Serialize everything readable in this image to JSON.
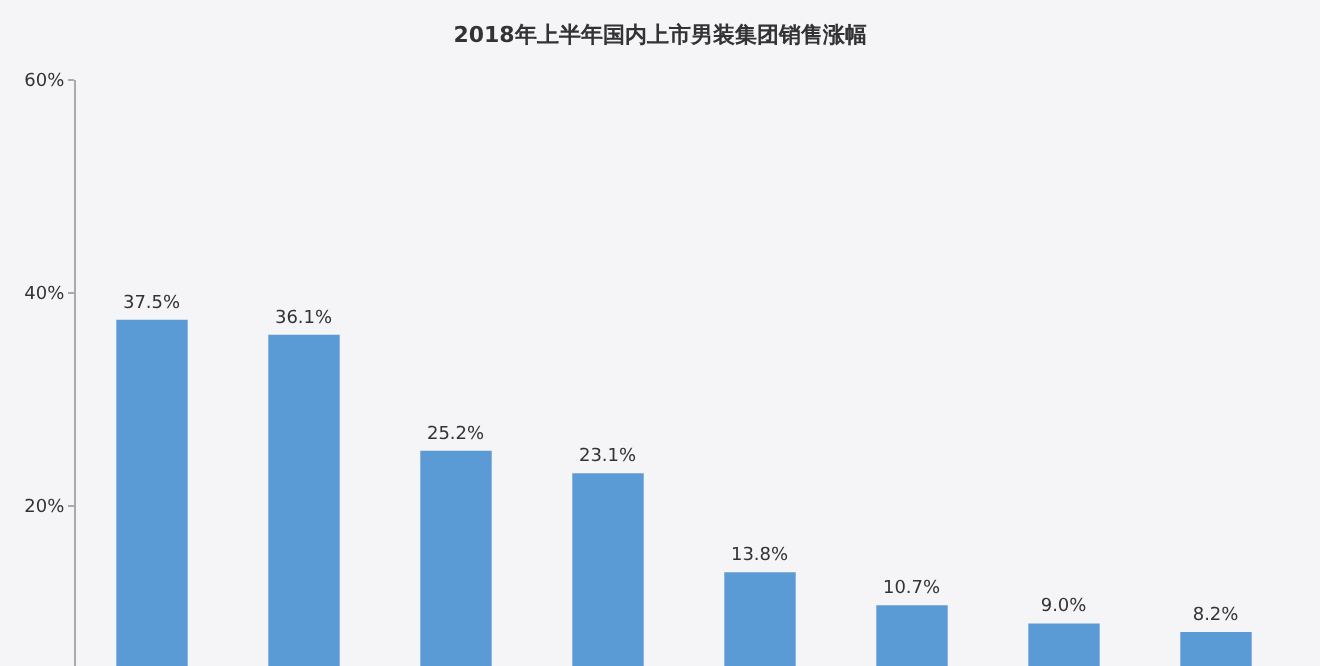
{
  "chart_data": {
    "type": "bar",
    "title": "2018年上半年国内上市男装集团销售涨幅",
    "categories": [
      null,
      null,
      null,
      null,
      null,
      null,
      null,
      null
    ],
    "values": [
      37.5,
      36.1,
      25.2,
      23.1,
      13.8,
      10.7,
      9.0,
      8.2
    ],
    "value_labels": [
      "37.5%",
      "36.1%",
      "25.2%",
      "23.1%",
      "13.8%",
      "10.7%",
      "9.0%",
      "8.2%"
    ],
    "color": "#5b9bd5",
    "ylim": [
      5,
      60
    ],
    "yticks": [
      {
        "value": 20,
        "label": "20%"
      },
      {
        "value": 40,
        "label": "40%"
      },
      {
        "value": 60,
        "label": "60%"
      }
    ],
    "grid": false
  }
}
